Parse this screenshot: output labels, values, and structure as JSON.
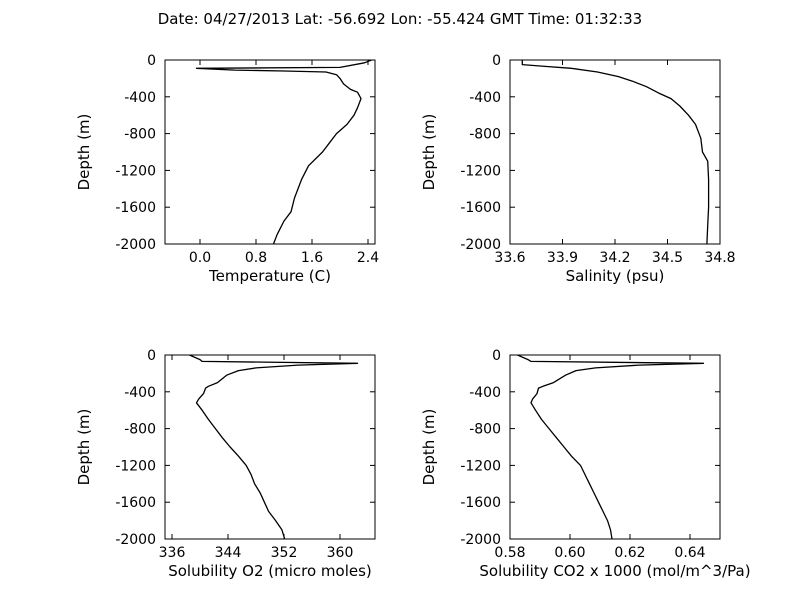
{
  "figure": {
    "title": "Date: 04/27/2013  Lat:  -56.692 Lon:  -55.424  GMT Time: 01:32:33"
  },
  "chart_data": [
    {
      "type": "line",
      "xlabel": "Temperature (C)",
      "ylabel": "Depth (m)",
      "xlim": [
        -0.5,
        2.5
      ],
      "ylim": [
        -2000,
        0
      ],
      "xticks": [
        "0.0",
        "0.8",
        "1.6",
        "2.4"
      ],
      "xtick_values": [
        0.0,
        0.8,
        1.6,
        2.4
      ],
      "yticks": [
        "0",
        "-400",
        "-800",
        "-1200",
        "-1600",
        "-2000"
      ],
      "ytick_values": [
        0,
        -400,
        -800,
        -1200,
        -1600,
        -2000
      ],
      "grid": false,
      "series": [
        {
          "color": "#000000",
          "points": [
            [
              2.45,
              0
            ],
            [
              2.35,
              -30
            ],
            [
              2.0,
              -80
            ],
            [
              -0.05,
              -90
            ],
            [
              0.5,
              -110
            ],
            [
              1.2,
              -120
            ],
            [
              1.8,
              -130
            ],
            [
              1.95,
              -160
            ],
            [
              2.0,
              -200
            ],
            [
              2.05,
              -260
            ],
            [
              2.15,
              -320
            ],
            [
              2.25,
              -350
            ],
            [
              2.3,
              -420
            ],
            [
              2.25,
              -520
            ],
            [
              2.2,
              -600
            ],
            [
              2.1,
              -700
            ],
            [
              1.95,
              -800
            ],
            [
              1.85,
              -900
            ],
            [
              1.75,
              -1000
            ],
            [
              1.55,
              -1150
            ],
            [
              1.45,
              -1300
            ],
            [
              1.35,
              -1500
            ],
            [
              1.3,
              -1650
            ],
            [
              1.2,
              -1750
            ],
            [
              1.1,
              -1900
            ],
            [
              1.05,
              -2000
            ]
          ]
        }
      ]
    },
    {
      "type": "line",
      "xlabel": "Salinity (psu)",
      "ylabel": "Depth (m)",
      "xlim": [
        33.6,
        34.8
      ],
      "ylim": [
        -2000,
        0
      ],
      "xticks": [
        "33.6",
        "33.9",
        "34.2",
        "34.5",
        "34.8"
      ],
      "xtick_values": [
        33.6,
        33.9,
        34.2,
        34.5,
        34.8
      ],
      "yticks": [
        "0",
        "-400",
        "-800",
        "-1200",
        "-1600",
        "-2000"
      ],
      "ytick_values": [
        0,
        -400,
        -800,
        -1200,
        -1600,
        -2000
      ],
      "grid": false,
      "series": [
        {
          "color": "#000000",
          "points": [
            [
              33.67,
              0
            ],
            [
              33.67,
              -50
            ],
            [
              33.8,
              -70
            ],
            [
              33.95,
              -90
            ],
            [
              34.1,
              -130
            ],
            [
              34.22,
              -180
            ],
            [
              34.3,
              -230
            ],
            [
              34.38,
              -290
            ],
            [
              34.45,
              -360
            ],
            [
              34.52,
              -420
            ],
            [
              34.57,
              -500
            ],
            [
              34.62,
              -600
            ],
            [
              34.66,
              -700
            ],
            [
              34.69,
              -850
            ],
            [
              34.7,
              -1000
            ],
            [
              34.73,
              -1100
            ],
            [
              34.735,
              -1300
            ],
            [
              34.735,
              -1600
            ],
            [
              34.73,
              -1800
            ],
            [
              34.725,
              -2000
            ]
          ]
        }
      ]
    },
    {
      "type": "line",
      "xlabel": "Solubility O2 (micro moles)",
      "ylabel": "Depth (m)",
      "xlim": [
        335,
        365
      ],
      "ylim": [
        -2000,
        0
      ],
      "xticks": [
        "336",
        "344",
        "352",
        "360"
      ],
      "xtick_values": [
        336,
        344,
        352,
        360
      ],
      "yticks": [
        "0",
        "-400",
        "-800",
        "-1200",
        "-1600",
        "-2000"
      ],
      "ytick_values": [
        0,
        -400,
        -800,
        -1200,
        -1600,
        -2000
      ],
      "grid": false,
      "series": [
        {
          "color": "#000000",
          "points": [
            [
              338.5,
              0
            ],
            [
              340,
              -50
            ],
            [
              340.3,
              -70
            ],
            [
              362.5,
              -90
            ],
            [
              354,
              -110
            ],
            [
              348,
              -140
            ],
            [
              345.5,
              -170
            ],
            [
              343.8,
              -220
            ],
            [
              342.5,
              -300
            ],
            [
              341.2,
              -340
            ],
            [
              340.8,
              -360
            ],
            [
              340.5,
              -420
            ],
            [
              339.8,
              -480
            ],
            [
              339.5,
              -520
            ],
            [
              340.3,
              -600
            ],
            [
              341.2,
              -700
            ],
            [
              342.2,
              -800
            ],
            [
              343.2,
              -900
            ],
            [
              344.3,
              -1000
            ],
            [
              345.5,
              -1100
            ],
            [
              346.6,
              -1200
            ],
            [
              347.3,
              -1300
            ],
            [
              347.8,
              -1400
            ],
            [
              348.6,
              -1500
            ],
            [
              349.2,
              -1600
            ],
            [
              349.8,
              -1700
            ],
            [
              350.8,
              -1800
            ],
            [
              351.7,
              -1900
            ],
            [
              352.1,
              -2000
            ]
          ]
        }
      ]
    },
    {
      "type": "line",
      "xlabel": "Solubility CO2 x 1000 (mol/m^3/Pa)",
      "ylabel": "Depth (m)",
      "xlim": [
        0.58,
        0.65
      ],
      "ylim": [
        -2000,
        0
      ],
      "xticks": [
        "0.58",
        "0.60",
        "0.62",
        "0.64"
      ],
      "xtick_values": [
        0.58,
        0.6,
        0.62,
        0.64
      ],
      "yticks": [
        "0",
        "-400",
        "-800",
        "-1200",
        "-1600",
        "-2000"
      ],
      "ytick_values": [
        0,
        -400,
        -800,
        -1200,
        -1600,
        -2000
      ],
      "grid": false,
      "series": [
        {
          "color": "#000000",
          "points": [
            [
              0.5825,
              0
            ],
            [
              0.586,
              -50
            ],
            [
              0.587,
              -70
            ],
            [
              0.6445,
              -90
            ],
            [
              0.623,
              -110
            ],
            [
              0.6085,
              -140
            ],
            [
              0.602,
              -170
            ],
            [
              0.5985,
              -220
            ],
            [
              0.5945,
              -300
            ],
            [
              0.591,
              -340
            ],
            [
              0.5895,
              -360
            ],
            [
              0.589,
              -420
            ],
            [
              0.5875,
              -480
            ],
            [
              0.587,
              -520
            ],
            [
              0.5885,
              -600
            ],
            [
              0.5905,
              -700
            ],
            [
              0.593,
              -800
            ],
            [
              0.5955,
              -900
            ],
            [
              0.598,
              -1000
            ],
            [
              0.6005,
              -1100
            ],
            [
              0.6035,
              -1200
            ],
            [
              0.605,
              -1300
            ],
            [
              0.6065,
              -1400
            ],
            [
              0.608,
              -1500
            ],
            [
              0.6095,
              -1600
            ],
            [
              0.611,
              -1700
            ],
            [
              0.6125,
              -1800
            ],
            [
              0.6135,
              -1900
            ],
            [
              0.614,
              -2000
            ]
          ]
        }
      ]
    }
  ]
}
